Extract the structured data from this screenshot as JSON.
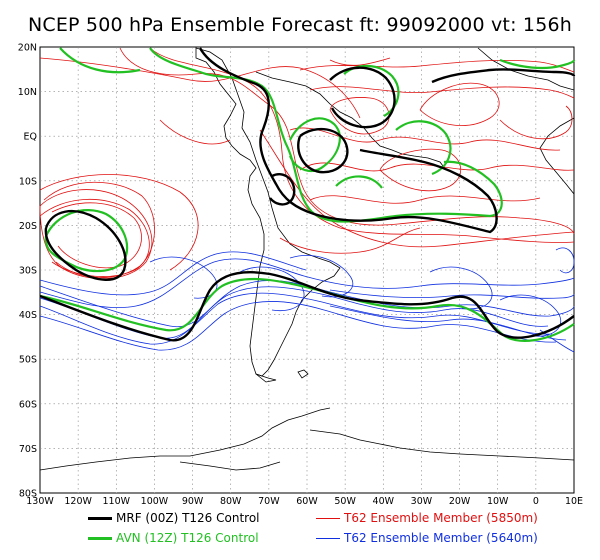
{
  "title": "NCEP 500 hPa Ensemble Forecast  ft: 99092000 vt: 156h",
  "lat_labels": [
    "20N",
    "10N",
    "EQ",
    "10S",
    "20S",
    "30S",
    "40S",
    "50S",
    "60S",
    "70S",
    "80S"
  ],
  "lon_labels": [
    "130W",
    "120W",
    "110W",
    "100W",
    "90W",
    "80W",
    "70W",
    "60W",
    "50W",
    "40W",
    "30W",
    "20W",
    "10W",
    "0",
    "10E"
  ],
  "legend": [
    {
      "label": "MRF (00Z) T126 Control",
      "color": "#000000",
      "width": 3
    },
    {
      "label": "AVN (12Z) T126 Control",
      "color": "#22c022",
      "width": 3
    },
    {
      "label": "T62 Ensemble Member (5850m)",
      "color": "#e01010",
      "width": 1
    },
    {
      "label": "T62 Ensemble Member (5640m)",
      "color": "#1030e0",
      "width": 1
    }
  ],
  "map_extent": {
    "lon": [
      -130,
      10
    ],
    "lat": [
      -80,
      20
    ]
  }
}
